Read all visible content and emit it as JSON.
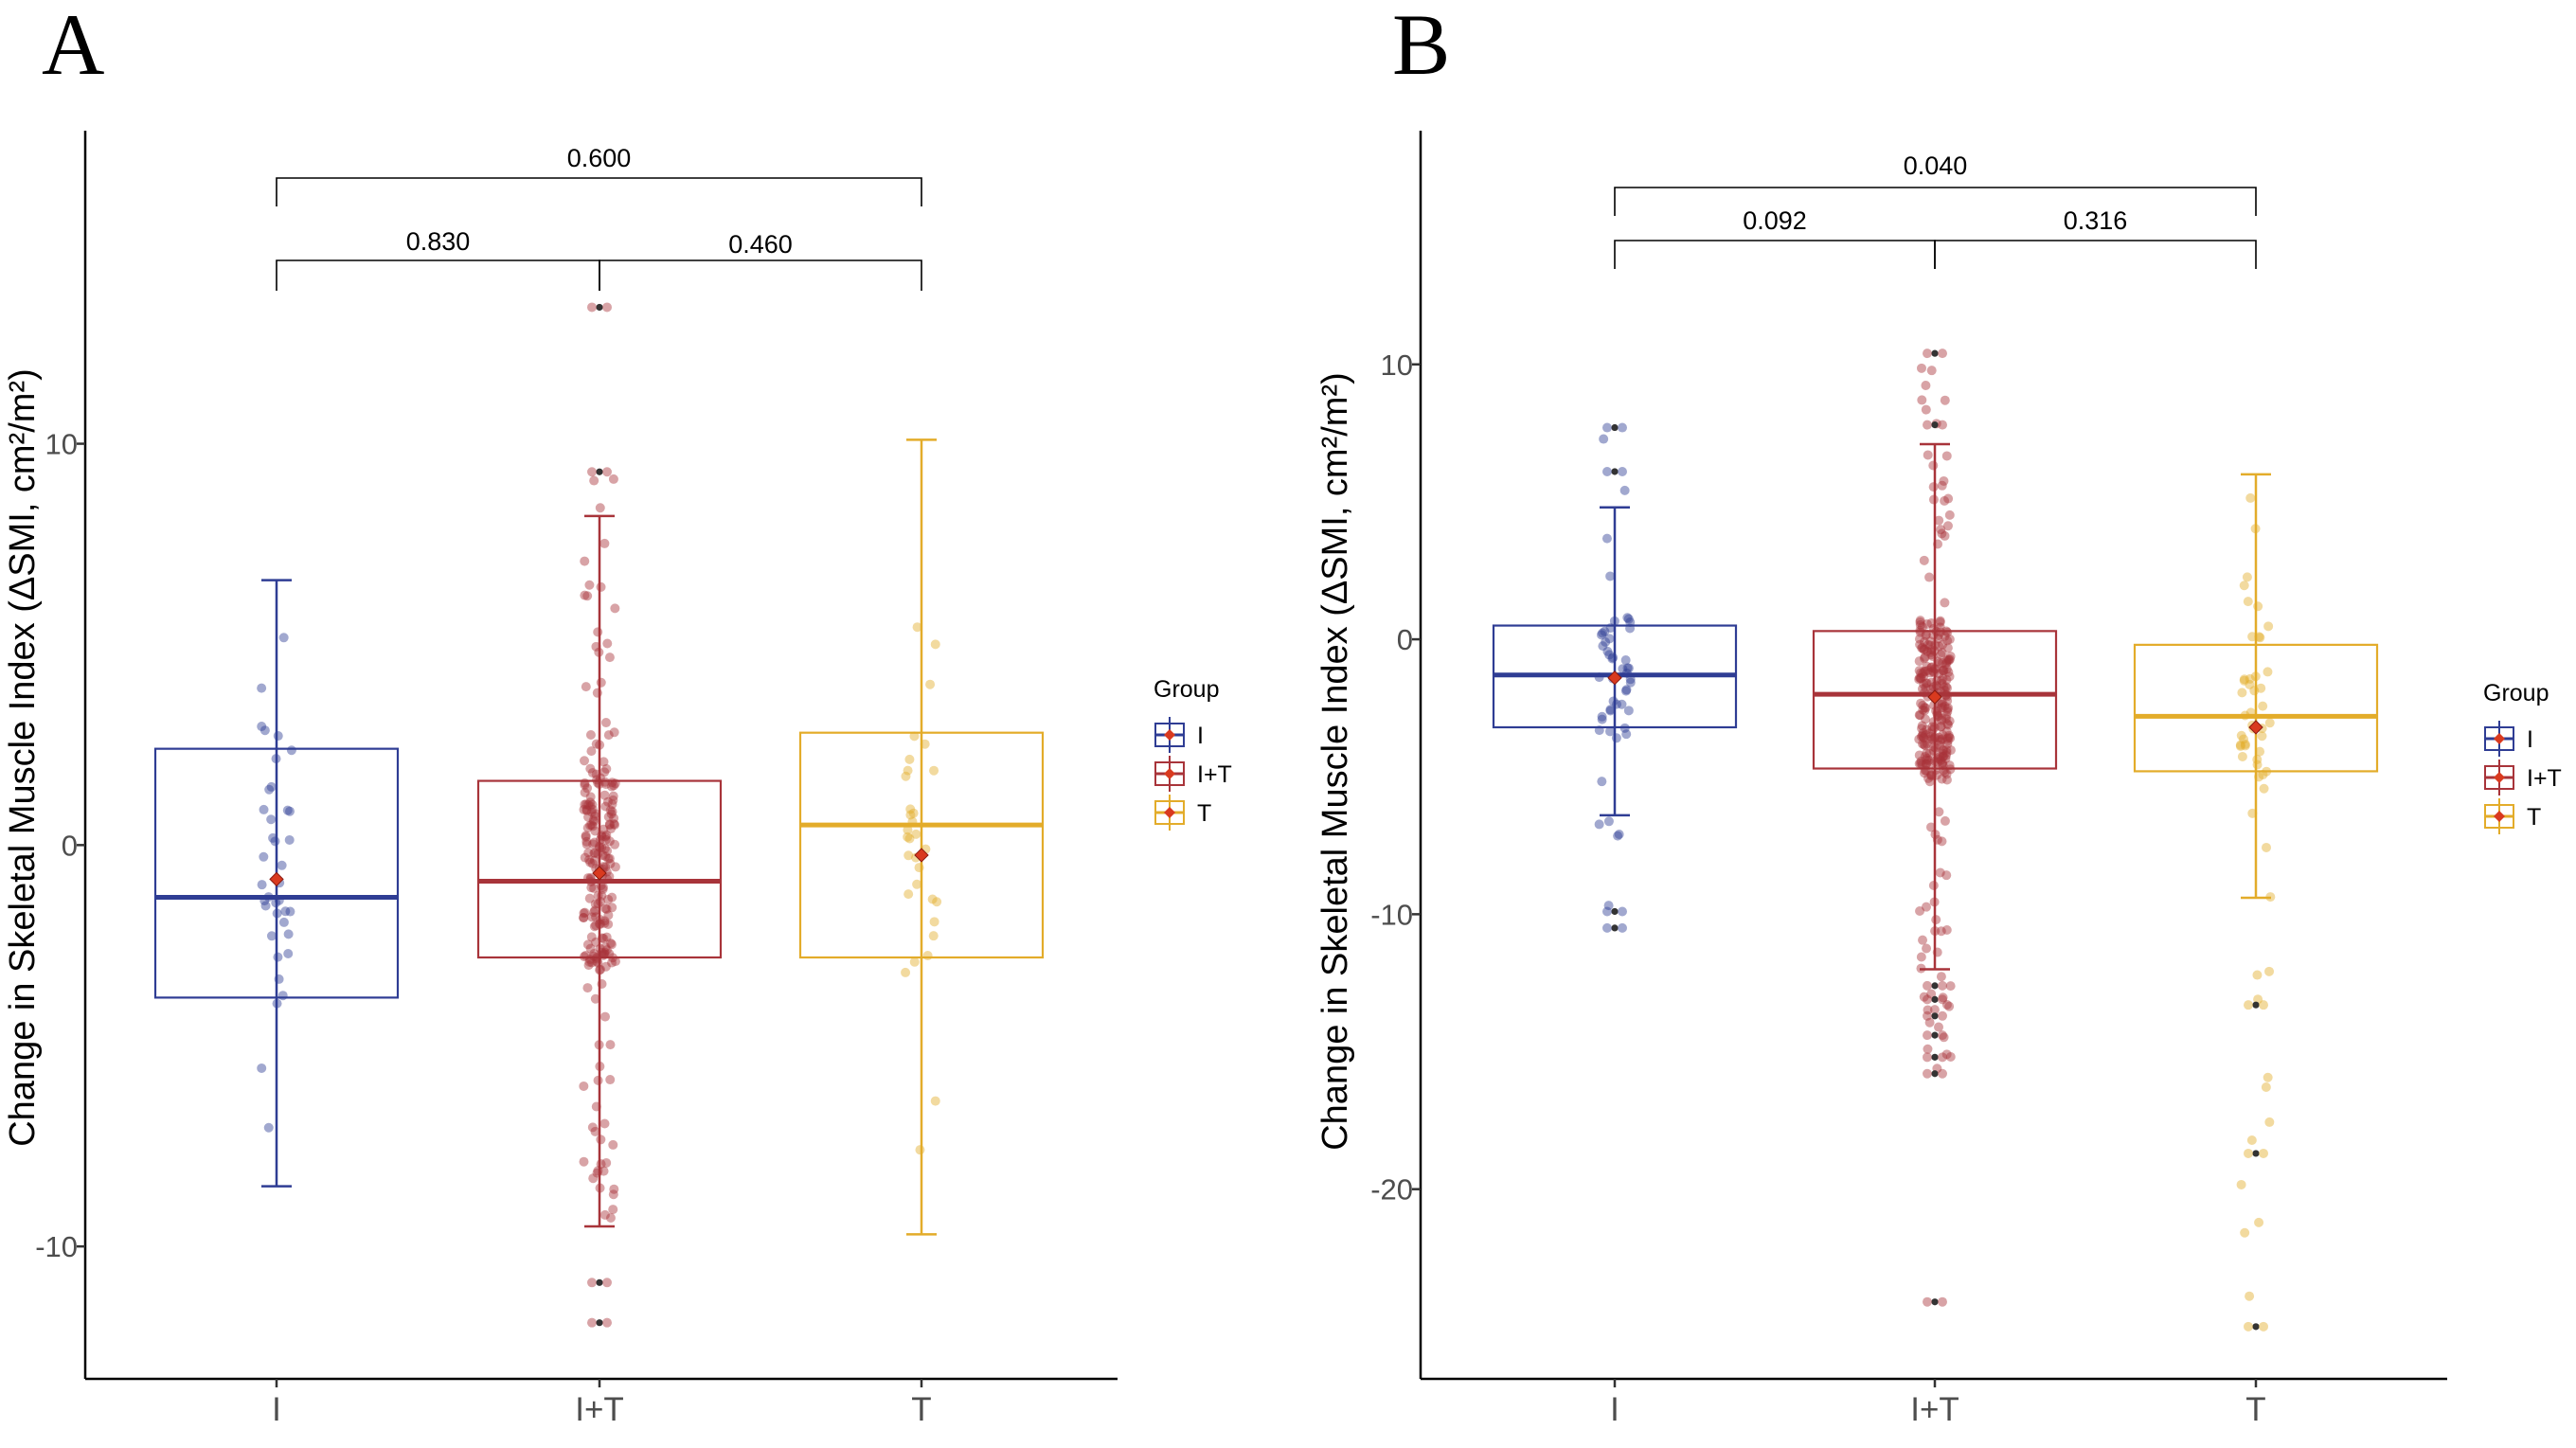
{
  "colors": {
    "I": "#2f3d94",
    "I+T": "#a8343a",
    "T": "#e3ac2a",
    "mean": "#d93a1f",
    "outlier": "#333333"
  },
  "legend": {
    "title": "Group",
    "entries": [
      "I",
      "I+T",
      "T"
    ]
  },
  "chart_data": [
    {
      "panel": "A",
      "type": "boxplot",
      "ylabel": "Change in Skeletal Muscle Index (ΔSMI, cm²/m²)",
      "xlabel": "",
      "categories": [
        "I",
        "I+T",
        "T"
      ],
      "ylim": [
        -13.3,
        17.8
      ],
      "yticks": [
        -10,
        0,
        10
      ],
      "boxes": [
        {
          "name": "I",
          "q1": -3.8,
          "median": -1.3,
          "q3": 2.4,
          "whisker_low": -8.5,
          "whisker_high": 6.6,
          "mean": -0.85,
          "outliers": [],
          "n_points": 38,
          "seed": 11,
          "range": [
            -7.4,
            6.0
          ]
        },
        {
          "name": "I+T",
          "q1": -2.8,
          "median": -0.9,
          "q3": 1.6,
          "whisker_low": -9.5,
          "whisker_high": 8.2,
          "mean": -0.7,
          "outliers": [
            13.4,
            9.3,
            -10.9,
            -11.9
          ],
          "n_points": 230,
          "seed": 23,
          "range": [
            -9.3,
            9.3
          ]
        },
        {
          "name": "T",
          "q1": -2.8,
          "median": 0.5,
          "q3": 2.8,
          "whisker_low": -9.7,
          "whisker_high": 10.1,
          "mean": -0.25,
          "outliers": [],
          "n_points": 32,
          "seed": 37,
          "range": [
            -9.6,
            10.0
          ]
        }
      ],
      "comparisons": [
        {
          "from": "I",
          "to": "T",
          "p": "0.600"
        },
        {
          "from": "I",
          "to": "I+T",
          "p": "0.830"
        },
        {
          "from": "I+T",
          "to": "T",
          "p": "0.460"
        }
      ]
    },
    {
      "panel": "B",
      "type": "boxplot",
      "ylabel": "Change in Skeletal Muscle Index (ΔSMI, cm²/m²)",
      "xlabel": "",
      "categories": [
        "I",
        "I+T",
        "T"
      ],
      "ylim": [
        -26.9,
        18.5
      ],
      "yticks": [
        -20,
        -10,
        0,
        10
      ],
      "boxes": [
        {
          "name": "I",
          "q1": -3.2,
          "median": -1.3,
          "q3": 0.5,
          "whisker_low": -6.4,
          "whisker_high": 4.8,
          "mean": -1.4,
          "outliers": [
            7.7,
            6.1,
            -9.9,
            -10.5
          ],
          "n_points": 50,
          "seed": 41,
          "range": [
            -10.5,
            7.7
          ]
        },
        {
          "name": "I+T",
          "q1": -4.7,
          "median": -2.0,
          "q3": 0.3,
          "whisker_low": -12.0,
          "whisker_high": 7.1,
          "mean": -2.1,
          "outliers": [
            10.4,
            7.8,
            -12.6,
            -13.1,
            -13.7,
            -14.4,
            -15.2,
            -15.8,
            -24.1
          ],
          "n_points": 300,
          "seed": 53,
          "range": [
            -15.8,
            10.4
          ]
        },
        {
          "name": "T",
          "q1": -4.8,
          "median": -2.8,
          "q3": -0.2,
          "whisker_low": -9.4,
          "whisker_high": 6.0,
          "mean": -3.2,
          "outliers": [
            -13.3,
            -18.7,
            -25.0
          ],
          "n_points": 55,
          "seed": 67,
          "range": [
            -25.0,
            6.1
          ]
        }
      ],
      "comparisons": [
        {
          "from": "I",
          "to": "T",
          "p": "0.040"
        },
        {
          "from": "I",
          "to": "I+T",
          "p": "0.092"
        },
        {
          "from": "I+T",
          "to": "T",
          "p": "0.316"
        }
      ]
    }
  ]
}
